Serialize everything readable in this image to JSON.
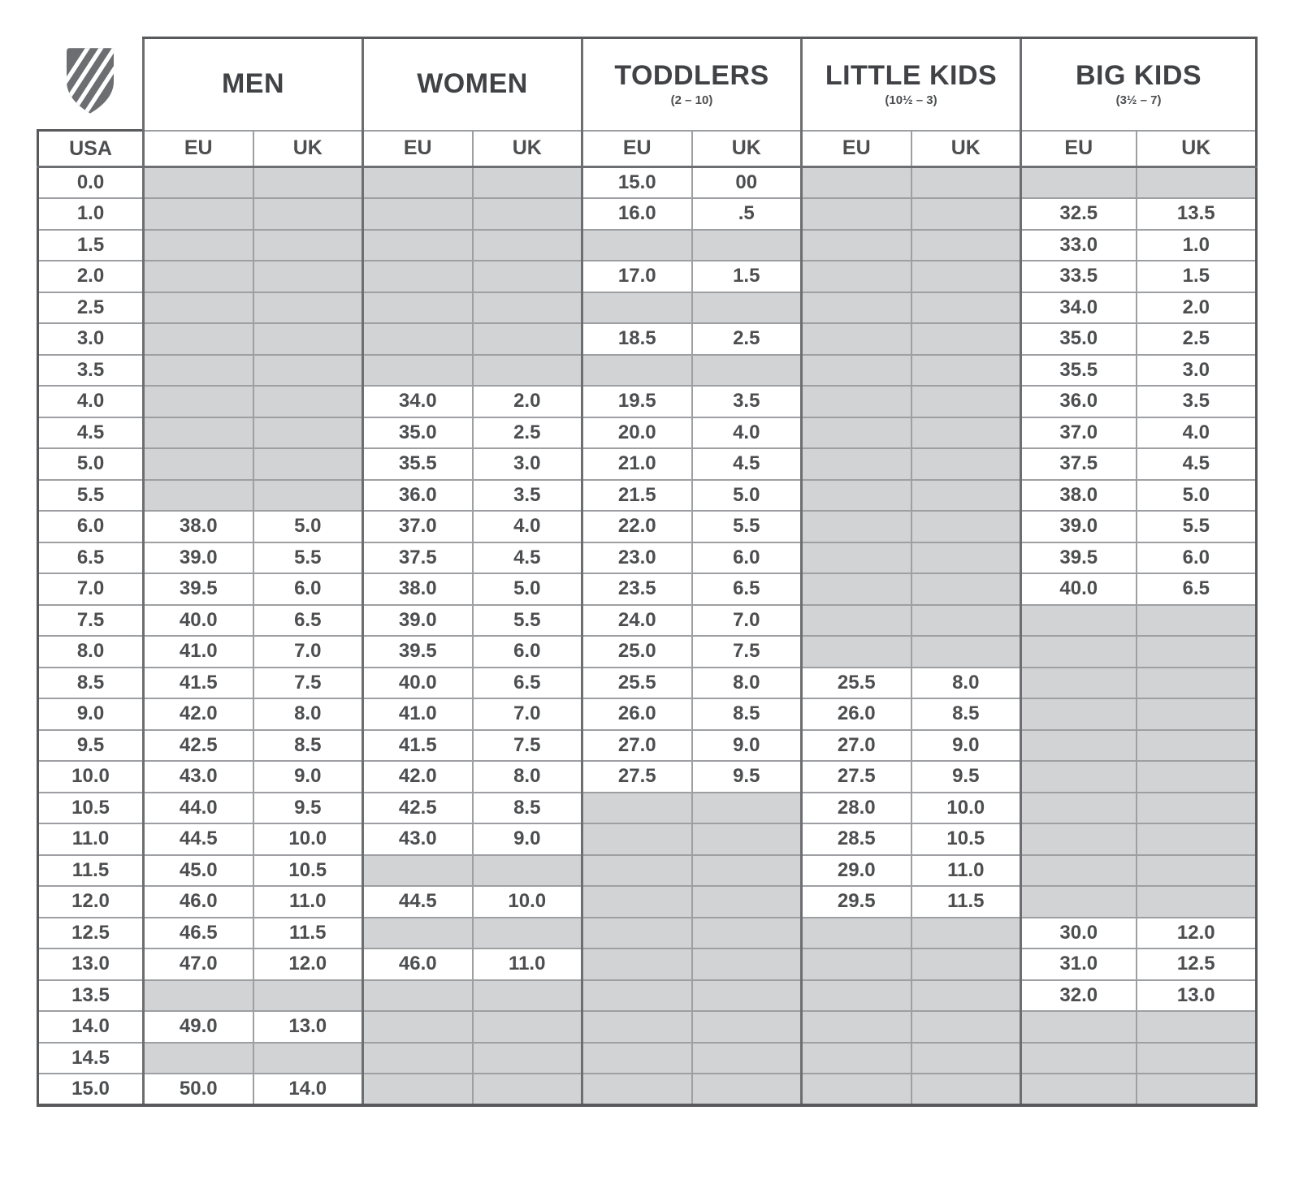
{
  "brand": {
    "logo_icon": "kswiss-shield-icon",
    "logo_color": "#6d6e71"
  },
  "table": {
    "usa_label": "USA",
    "eu_label": "EU",
    "uk_label": "UK",
    "groups": [
      {
        "label": "MEN",
        "sub": ""
      },
      {
        "label": "WOMEN",
        "sub": ""
      },
      {
        "label": "TODDLERS",
        "sub": "(2 – 10)"
      },
      {
        "label": "LITTLE KIDS",
        "sub": "(10½ – 3)"
      },
      {
        "label": "BIG KIDS",
        "sub": "(3½ – 7)"
      }
    ],
    "columns": [
      "USA",
      "MEN EU",
      "MEN UK",
      "WOMEN EU",
      "WOMEN UK",
      "TODDLERS EU",
      "TODDLERS UK",
      "LITTLE KIDS EU",
      "LITTLE KIDS UK",
      "BIG KIDS EU",
      "BIG KIDS UK"
    ],
    "rows": [
      [
        "0.0",
        "",
        "",
        "",
        "",
        "15.0",
        "00",
        "",
        "",
        "",
        ""
      ],
      [
        "1.0",
        "",
        "",
        "",
        "",
        "16.0",
        ".5",
        "",
        "",
        "32.5",
        "13.5"
      ],
      [
        "1.5",
        "",
        "",
        "",
        "",
        "",
        "",
        "",
        "",
        "33.0",
        "1.0"
      ],
      [
        "2.0",
        "",
        "",
        "",
        "",
        "17.0",
        "1.5",
        "",
        "",
        "33.5",
        "1.5"
      ],
      [
        "2.5",
        "",
        "",
        "",
        "",
        "",
        "",
        "",
        "",
        "34.0",
        "2.0"
      ],
      [
        "3.0",
        "",
        "",
        "",
        "",
        "18.5",
        "2.5",
        "",
        "",
        "35.0",
        "2.5"
      ],
      [
        "3.5",
        "",
        "",
        "",
        "",
        "",
        "",
        "",
        "",
        "35.5",
        "3.0"
      ],
      [
        "4.0",
        "",
        "",
        "34.0",
        "2.0",
        "19.5",
        "3.5",
        "",
        "",
        "36.0",
        "3.5"
      ],
      [
        "4.5",
        "",
        "",
        "35.0",
        "2.5",
        "20.0",
        "4.0",
        "",
        "",
        "37.0",
        "4.0"
      ],
      [
        "5.0",
        "",
        "",
        "35.5",
        "3.0",
        "21.0",
        "4.5",
        "",
        "",
        "37.5",
        "4.5"
      ],
      [
        "5.5",
        "",
        "",
        "36.0",
        "3.5",
        "21.5",
        "5.0",
        "",
        "",
        "38.0",
        "5.0"
      ],
      [
        "6.0",
        "38.0",
        "5.0",
        "37.0",
        "4.0",
        "22.0",
        "5.5",
        "",
        "",
        "39.0",
        "5.5"
      ],
      [
        "6.5",
        "39.0",
        "5.5",
        "37.5",
        "4.5",
        "23.0",
        "6.0",
        "",
        "",
        "39.5",
        "6.0"
      ],
      [
        "7.0",
        "39.5",
        "6.0",
        "38.0",
        "5.0",
        "23.5",
        "6.5",
        "",
        "",
        "40.0",
        "6.5"
      ],
      [
        "7.5",
        "40.0",
        "6.5",
        "39.0",
        "5.5",
        "24.0",
        "7.0",
        "",
        "",
        "",
        ""
      ],
      [
        "8.0",
        "41.0",
        "7.0",
        "39.5",
        "6.0",
        "25.0",
        "7.5",
        "",
        "",
        "",
        ""
      ],
      [
        "8.5",
        "41.5",
        "7.5",
        "40.0",
        "6.5",
        "25.5",
        "8.0",
        "25.5",
        "8.0",
        "",
        ""
      ],
      [
        "9.0",
        "42.0",
        "8.0",
        "41.0",
        "7.0",
        "26.0",
        "8.5",
        "26.0",
        "8.5",
        "",
        ""
      ],
      [
        "9.5",
        "42.5",
        "8.5",
        "41.5",
        "7.5",
        "27.0",
        "9.0",
        "27.0",
        "9.0",
        "",
        ""
      ],
      [
        "10.0",
        "43.0",
        "9.0",
        "42.0",
        "8.0",
        "27.5",
        "9.5",
        "27.5",
        "9.5",
        "",
        ""
      ],
      [
        "10.5",
        "44.0",
        "9.5",
        "42.5",
        "8.5",
        "",
        "",
        "28.0",
        "10.0",
        "",
        ""
      ],
      [
        "11.0",
        "44.5",
        "10.0",
        "43.0",
        "9.0",
        "",
        "",
        "28.5",
        "10.5",
        "",
        ""
      ],
      [
        "11.5",
        "45.0",
        "10.5",
        "",
        "",
        "",
        "",
        "29.0",
        "11.0",
        "",
        ""
      ],
      [
        "12.0",
        "46.0",
        "11.0",
        "44.5",
        "10.0",
        "",
        "",
        "29.5",
        "11.5",
        "",
        ""
      ],
      [
        "12.5",
        "46.5",
        "11.5",
        "",
        "",
        "",
        "",
        "",
        "",
        "30.0",
        "12.0"
      ],
      [
        "13.0",
        "47.0",
        "12.0",
        "46.0",
        "11.0",
        "",
        "",
        "",
        "",
        "31.0",
        "12.5"
      ],
      [
        "13.5",
        "",
        "",
        "",
        "",
        "",
        "",
        "",
        "",
        "32.0",
        "13.0"
      ],
      [
        "14.0",
        "49.0",
        "13.0",
        "",
        "",
        "",
        "",
        "",
        "",
        "",
        ""
      ],
      [
        "14.5",
        "",
        "",
        "",
        "",
        "",
        "",
        "",
        "",
        "",
        ""
      ],
      [
        "15.0",
        "50.0",
        "14.0",
        "",
        "",
        "",
        "",
        "",
        "",
        "",
        ""
      ]
    ]
  }
}
